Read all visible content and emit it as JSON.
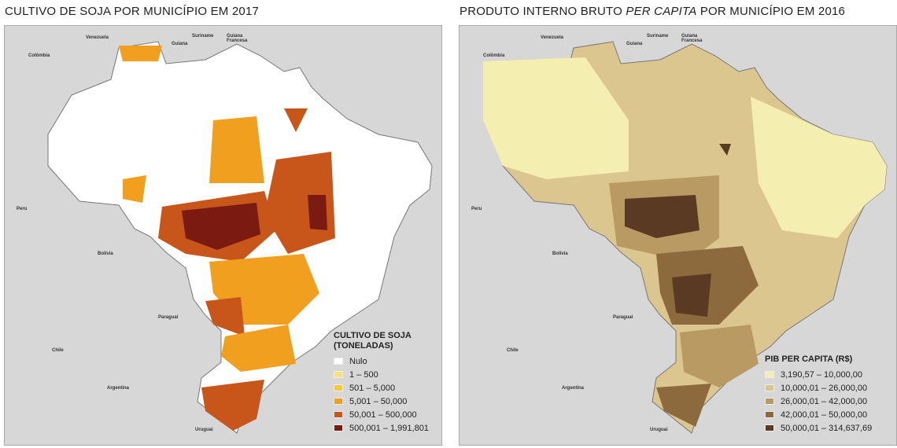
{
  "left": {
    "title": "CULTIVO DE SOJA POR MUNICÍPIO EM 2017",
    "legend_title": "CULTIVO DE SOJA (TONELADAS)",
    "legend": [
      {
        "label": "Nulo",
        "color": "#ffffff"
      },
      {
        "label": "1 – 500",
        "color": "#f7e27a"
      },
      {
        "label": "501 – 5,000",
        "color": "#f8c93a"
      },
      {
        "label": "5,001 – 50,000",
        "color": "#f0a01e"
      },
      {
        "label": "50,001 – 500,000",
        "color": "#c8561b"
      },
      {
        "label": "500,001 – 1,991,801",
        "color": "#7a1a10"
      }
    ]
  },
  "right": {
    "title_pre": "PRODUTO INTERNO BRUTO ",
    "title_em": "PER CAPITA",
    "title_post": " POR MUNICÍPIO EM 2016",
    "legend_title": "PIB PER CAPITA (R$)",
    "legend": [
      {
        "label": "3,190,57 – 10,000,00",
        "color": "#f4efb0"
      },
      {
        "label": "10,000,01 – 26,000,00",
        "color": "#dcc690"
      },
      {
        "label": "26,000,01 – 42,000,00",
        "color": "#b99a62"
      },
      {
        "label": "42,000,01 – 50,000,00",
        "color": "#8d6a3e"
      },
      {
        "label": "50,000,01 – 314,637,69",
        "color": "#5a3a22"
      }
    ]
  },
  "countries": [
    "Colômbia",
    "Venezuela",
    "Suriname",
    "Guiana",
    "Guiana Francesa",
    "Peru",
    "Bolívia",
    "Paraguai",
    "Chile",
    "Argentina",
    "Uruguai"
  ]
}
